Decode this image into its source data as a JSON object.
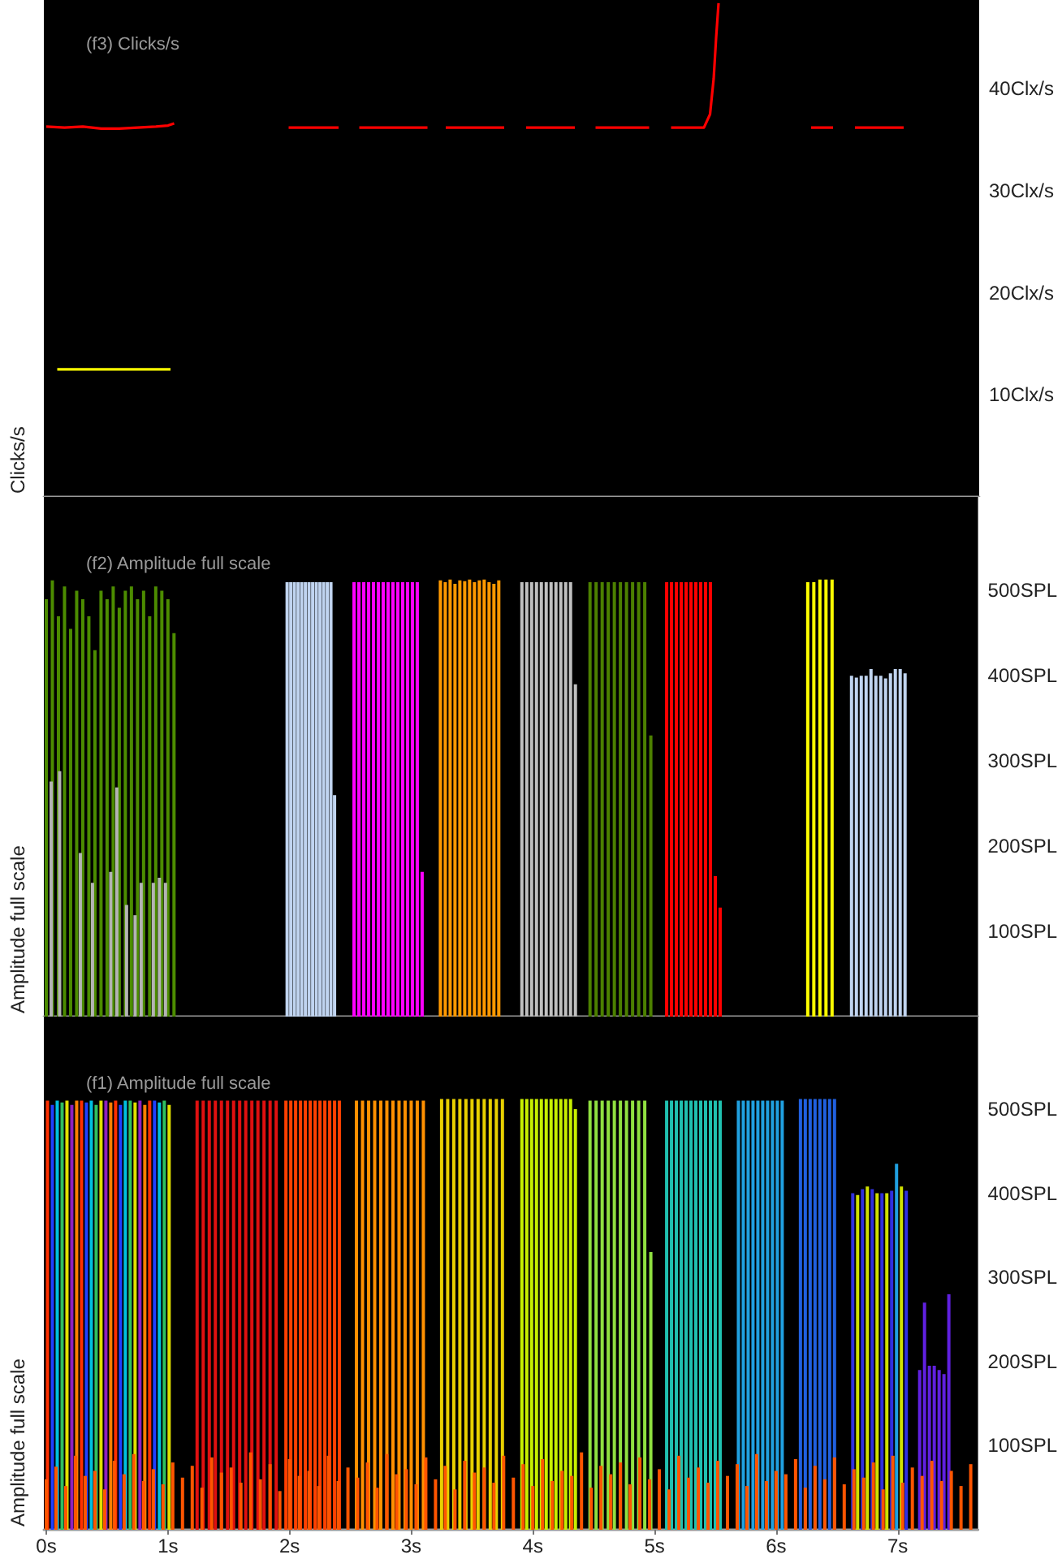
{
  "chart_data": [
    {
      "type": "line",
      "title": "(f3) Clicks/s",
      "ylabel": "Clicks/s",
      "xlim": [
        -0.02,
        7.66
      ],
      "ylim": [
        0,
        48.7
      ],
      "yticks": [
        {
          "value": 10,
          "label": "10Clx/s"
        },
        {
          "value": 20,
          "label": "20Clx/s"
        },
        {
          "value": 30,
          "label": "30Clx/s"
        },
        {
          "value": 40,
          "label": "40Clx/s"
        }
      ],
      "tick_labels": "y",
      "series": [
        {
          "color": "#ff0000",
          "x": [
            0.0,
            0.15,
            0.3,
            0.45,
            0.6,
            0.75,
            0.9,
            1.0,
            1.05,
            1.06,
            1.99,
            2.4,
            2.41,
            2.57,
            3.13,
            3.14,
            3.28,
            3.76,
            3.77,
            3.94,
            4.34,
            4.35,
            4.51,
            4.95,
            4.96,
            5.13,
            5.4,
            5.45,
            5.48,
            5.5,
            5.52,
            5.53,
            6.28,
            6.46,
            6.47,
            6.64,
            7.04
          ],
          "values": [
            36.3,
            36.2,
            36.3,
            36.1,
            36.1,
            36.2,
            36.3,
            36.4,
            36.6,
            null,
            36.2,
            36.2,
            null,
            36.2,
            36.2,
            null,
            36.2,
            36.2,
            null,
            36.2,
            36.2,
            null,
            36.2,
            36.2,
            null,
            36.2,
            36.2,
            37.5,
            41,
            45,
            48.4,
            null,
            36.2,
            36.2,
            null,
            36.2,
            36.2
          ]
        },
        {
          "color": "#ffff00",
          "x": [
            0.09,
            1.02
          ],
          "values": [
            12.5,
            12.5
          ]
        }
      ]
    },
    {
      "type": "bar",
      "title": "(f2) Amplitude full scale",
      "ylabel": "Amplitude full scale",
      "xlim": [
        -0.02,
        7.66
      ],
      "ylim": [
        0,
        610
      ],
      "yticks": [
        {
          "value": 100,
          "label": "100SPL"
        },
        {
          "value": 200,
          "label": "200SPL"
        },
        {
          "value": 300,
          "label": "300SPL"
        },
        {
          "value": 400,
          "label": "400SPL"
        },
        {
          "value": 500,
          "label": "500SPL"
        }
      ],
      "tick_labels": "y",
      "series": [
        {
          "color": "#4c8c00",
          "x": [
            0.0,
            0.05,
            0.1,
            0.15,
            0.2,
            0.25,
            0.3,
            0.35,
            0.4,
            0.45,
            0.5,
            0.55,
            0.6,
            0.65,
            0.7,
            0.75,
            0.8,
            0.85,
            0.9,
            0.95,
            1.0,
            1.05
          ],
          "values": [
            490,
            512,
            470,
            505,
            455,
            500,
            490,
            470,
            430,
            500,
            490,
            505,
            480,
            500,
            505,
            490,
            500,
            470,
            505,
            500,
            490,
            450
          ]
        },
        {
          "color": "#b4b4b4",
          "x": [
            0.04,
            0.11,
            0.28,
            0.38,
            0.53,
            0.58,
            0.66,
            0.73,
            0.78,
            0.88,
            0.93,
            0.98
          ],
          "values": [
            276,
            288,
            192,
            157,
            170,
            269,
            131,
            119,
            157,
            157,
            163,
            157
          ]
        },
        {
          "color": "#c0d4f0",
          "x": [
            1.98,
            2.01,
            2.04,
            2.07,
            2.1,
            2.13,
            2.16,
            2.19,
            2.22,
            2.25,
            2.28,
            2.31,
            2.34,
            2.37
          ],
          "values": [
            510,
            510,
            510,
            510,
            510,
            510,
            510,
            510,
            510,
            510,
            510,
            510,
            510,
            260
          ]
        },
        {
          "color": "#ff00ff",
          "x": [
            2.53,
            2.57,
            2.61,
            2.65,
            2.69,
            2.73,
            2.77,
            2.81,
            2.85,
            2.89,
            2.93,
            2.97,
            3.01,
            3.05,
            3.09
          ],
          "values": [
            510,
            510,
            510,
            510,
            510,
            510,
            510,
            510,
            510,
            510,
            510,
            510,
            510,
            510,
            170
          ]
        },
        {
          "color": "#ff9900",
          "x": [
            3.24,
            3.28,
            3.32,
            3.36,
            3.4,
            3.44,
            3.48,
            3.52,
            3.56,
            3.6,
            3.64,
            3.68,
            3.72
          ],
          "values": [
            512,
            510,
            513,
            508,
            512,
            511,
            513,
            510,
            512,
            513,
            510,
            508,
            512
          ]
        },
        {
          "color": "#c0c0c0",
          "x": [
            3.91,
            3.95,
            3.99,
            4.03,
            4.07,
            4.11,
            4.15,
            4.19,
            4.23,
            4.27,
            4.31,
            4.35
          ],
          "values": [
            510,
            510,
            510,
            510,
            510,
            510,
            510,
            510,
            510,
            510,
            510,
            390
          ]
        },
        {
          "color": "#4c8000",
          "x": [
            4.47,
            4.52,
            4.57,
            4.62,
            4.67,
            4.72,
            4.77,
            4.82,
            4.87,
            4.92,
            4.97
          ],
          "values": [
            510,
            510,
            510,
            510,
            510,
            510,
            510,
            510,
            510,
            510,
            330
          ]
        },
        {
          "color": "#ff0000",
          "x": [
            5.1,
            5.14,
            5.18,
            5.22,
            5.26,
            5.3,
            5.34,
            5.38,
            5.42,
            5.46,
            5.5,
            5.54
          ],
          "values": [
            510,
            510,
            510,
            510,
            510,
            510,
            510,
            510,
            510,
            510,
            165,
            128
          ]
        },
        {
          "color": "#ffff00",
          "x": [
            6.26,
            6.31,
            6.36,
            6.41,
            6.46
          ],
          "values": [
            510,
            510,
            513,
            513,
            513
          ]
        },
        {
          "color": "#c0d4f0",
          "x": [
            6.62,
            6.66,
            6.7,
            6.74,
            6.78,
            6.82,
            6.86,
            6.9,
            6.94,
            6.98,
            7.02,
            7.06
          ],
          "values": [
            400,
            398,
            400,
            400,
            408,
            400,
            400,
            397,
            403,
            408,
            408,
            403
          ]
        }
      ]
    },
    {
      "type": "bar",
      "title": "(f1) Amplitude full scale",
      "ylabel": "Amplitude full scale",
      "xlim": [
        -0.02,
        7.66
      ],
      "ylim": [
        0,
        610
      ],
      "xticks": [
        {
          "value": 0,
          "label": "0s"
        },
        {
          "value": 1,
          "label": "1s"
        },
        {
          "value": 2,
          "label": "2s"
        },
        {
          "value": 3,
          "label": "3s"
        },
        {
          "value": 4,
          "label": "4s"
        },
        {
          "value": 5,
          "label": "5s"
        },
        {
          "value": 6,
          "label": "6s"
        },
        {
          "value": 7,
          "label": "7s"
        }
      ],
      "yticks": [
        {
          "value": 100,
          "label": "100SPL"
        },
        {
          "value": 200,
          "label": "200SPL"
        },
        {
          "value": 300,
          "label": "300SPL"
        },
        {
          "value": 400,
          "label": "400SPL"
        },
        {
          "value": 500,
          "label": "500SPL"
        }
      ],
      "series": [
        {
          "color": "#ff3000",
          "x": [
            0.01,
            0.05,
            0.09,
            0.13,
            0.17,
            0.21,
            0.25,
            0.29,
            0.33,
            0.37,
            0.41,
            0.45,
            0.49,
            0.53,
            0.57,
            0.61,
            0.65,
            0.69,
            0.73,
            0.77,
            0.81,
            0.85,
            0.89,
            0.93,
            0.97,
            1.01
          ],
          "values": [
            510,
            505,
            510,
            508,
            510,
            505,
            510,
            510,
            508,
            510,
            505,
            510,
            510,
            508,
            510,
            505,
            510,
            510,
            508,
            510,
            505,
            510,
            510,
            508,
            510,
            505
          ],
          "colors": [
            "#ff3000",
            "#2040ff",
            "#00c0e0",
            "#30c060",
            "#e0e000",
            "#9020c0",
            "#ff8000",
            "#ff3000",
            "#2040ff",
            "#00c0e0",
            "#30c060",
            "#e0e000",
            "#9020c0",
            "#ff8000",
            "#ff3000",
            "#2040ff",
            "#00c0e0",
            "#30c060",
            "#e0e000",
            "#9020c0",
            "#ff8000",
            "#ff3000",
            "#2040ff",
            "#00c0e0",
            "#30c060",
            "#e0e000"
          ]
        },
        {
          "color": "#e01010",
          "x": [
            1.24,
            1.29,
            1.34,
            1.39,
            1.44,
            1.49,
            1.54,
            1.59,
            1.64,
            1.69,
            1.74,
            1.79,
            1.84,
            1.89
          ],
          "values": [
            510,
            510,
            510,
            510,
            510,
            510,
            510,
            510,
            510,
            510,
            510,
            510,
            510,
            510
          ]
        },
        {
          "color": "#ff4000",
          "x": [
            1.97,
            2.01,
            2.05,
            2.09,
            2.13,
            2.17,
            2.21,
            2.25,
            2.29,
            2.33,
            2.37,
            2.41
          ],
          "values": [
            510,
            510,
            510,
            510,
            510,
            510,
            510,
            510,
            510,
            510,
            510,
            510
          ]
        },
        {
          "color": "#ff9000",
          "x": [
            2.55,
            2.6,
            2.65,
            2.7,
            2.75,
            2.8,
            2.85,
            2.9,
            2.95,
            3.0,
            3.05,
            3.1
          ],
          "values": [
            510,
            510,
            510,
            510,
            510,
            510,
            510,
            510,
            510,
            510,
            510,
            510
          ]
        },
        {
          "color": "#e8d000",
          "x": [
            3.25,
            3.3,
            3.35,
            3.4,
            3.45,
            3.5,
            3.55,
            3.6,
            3.65,
            3.7,
            3.75
          ],
          "values": [
            512,
            512,
            512,
            512,
            512,
            512,
            512,
            512,
            512,
            512,
            512
          ]
        },
        {
          "color": "#c8f000",
          "x": [
            3.91,
            3.95,
            3.99,
            4.03,
            4.07,
            4.11,
            4.15,
            4.19,
            4.23,
            4.27,
            4.31,
            4.35
          ],
          "values": [
            512,
            512,
            512,
            512,
            512,
            512,
            512,
            512,
            512,
            512,
            512,
            500
          ]
        },
        {
          "color": "#90e040",
          "x": [
            4.47,
            4.52,
            4.57,
            4.62,
            4.67,
            4.72,
            4.77,
            4.82,
            4.87,
            4.92,
            4.97
          ],
          "values": [
            510,
            510,
            510,
            510,
            510,
            510,
            510,
            510,
            510,
            510,
            330
          ]
        },
        {
          "color": "#20c0b0",
          "x": [
            5.1,
            5.14,
            5.18,
            5.22,
            5.26,
            5.3,
            5.34,
            5.38,
            5.42,
            5.46,
            5.5,
            5.54
          ],
          "values": [
            510,
            510,
            510,
            510,
            510,
            510,
            510,
            510,
            510,
            510,
            510,
            510
          ]
        },
        {
          "color": "#20a0e0",
          "x": [
            5.69,
            5.73,
            5.77,
            5.81,
            5.85,
            5.89,
            5.93,
            5.97,
            6.01,
            6.05
          ],
          "values": [
            510,
            510,
            510,
            510,
            510,
            510,
            510,
            510,
            510,
            510
          ]
        },
        {
          "color": "#2060e0",
          "x": [
            6.2,
            6.24,
            6.28,
            6.32,
            6.36,
            6.4,
            6.44,
            6.48
          ],
          "values": [
            512,
            512,
            512,
            512,
            512,
            512,
            512,
            512
          ]
        },
        {
          "color": "#3030e0",
          "x": [
            6.63,
            6.67,
            6.71,
            6.75,
            6.79,
            6.83,
            6.87,
            6.91,
            6.95,
            6.99,
            7.03,
            7.07
          ],
          "values": [
            400,
            398,
            405,
            408,
            405,
            400,
            400,
            400,
            403,
            435,
            408,
            403
          ],
          "colors": [
            "#3030e0",
            "#d0e000",
            "#3030e0",
            "#d0e000",
            "#3030e0",
            "#d0e000",
            "#3030e0",
            "#d0e000",
            "#3030e0",
            "#20a0e0",
            "#d0e000",
            "#3030e0"
          ]
        },
        {
          "color": "#6020e0",
          "x": [
            7.18,
            7.22,
            7.26,
            7.3,
            7.34,
            7.38,
            7.42
          ],
          "values": [
            190,
            270,
            195,
            195,
            190,
            185,
            280
          ]
        },
        {
          "color": "#ff5500",
          "x": [
            0.0,
            0.08,
            0.16,
            0.24,
            0.32,
            0.4,
            0.48,
            0.56,
            0.64,
            0.72,
            0.8,
            0.88,
            0.96,
            1.04,
            1.12,
            1.2,
            1.28,
            1.36,
            1.44,
            1.52,
            1.6,
            1.68,
            1.76,
            1.84,
            1.92,
            2.0,
            2.08,
            2.16,
            2.24,
            2.32,
            2.4,
            2.48,
            2.56,
            2.64,
            2.72,
            2.8,
            2.88,
            2.96,
            3.04,
            3.12,
            3.2,
            3.28,
            3.36,
            3.44,
            3.52,
            3.6,
            3.68,
            3.76,
            3.84,
            3.92,
            4.0,
            4.08,
            4.16,
            4.24,
            4.32,
            4.4,
            4.48,
            4.56,
            4.64,
            4.72,
            4.8,
            4.88,
            4.96,
            5.04,
            5.12,
            5.2,
            5.28,
            5.36,
            5.44,
            5.52,
            5.6,
            5.68,
            5.76,
            5.84,
            5.92,
            6.0,
            6.08,
            6.16,
            6.24,
            6.32,
            6.4,
            6.48,
            6.56,
            6.64,
            6.72,
            6.8,
            6.88,
            6.96,
            7.04,
            7.12,
            7.2,
            7.28,
            7.36,
            7.44,
            7.52,
            7.6
          ],
          "values": [
            60,
            75,
            52,
            88,
            64,
            70,
            48,
            82,
            66,
            90,
            58,
            72,
            54,
            80,
            62,
            76,
            50,
            86,
            68,
            74,
            56,
            92,
            60,
            78,
            46,
            84,
            64,
            70,
            52,
            88,
            58,
            74,
            62,
            80,
            50,
            90,
            66,
            72,
            54,
            86,
            60,
            76,
            48,
            82,
            68,
            74,
            56,
            88,
            62,
            78,
            52,
            84,
            58,
            70,
            64,
            92,
            50,
            76,
            66,
            80,
            54,
            86,
            60,
            72,
            48,
            88,
            62,
            74,
            56,
            82,
            64,
            78,
            52,
            90,
            58,
            70,
            66,
            84,
            50,
            76,
            60,
            86,
            54,
            72,
            62,
            80,
            48,
            88,
            56,
            74,
            64,
            82,
            58,
            70,
            52,
            78
          ]
        }
      ]
    }
  ]
}
